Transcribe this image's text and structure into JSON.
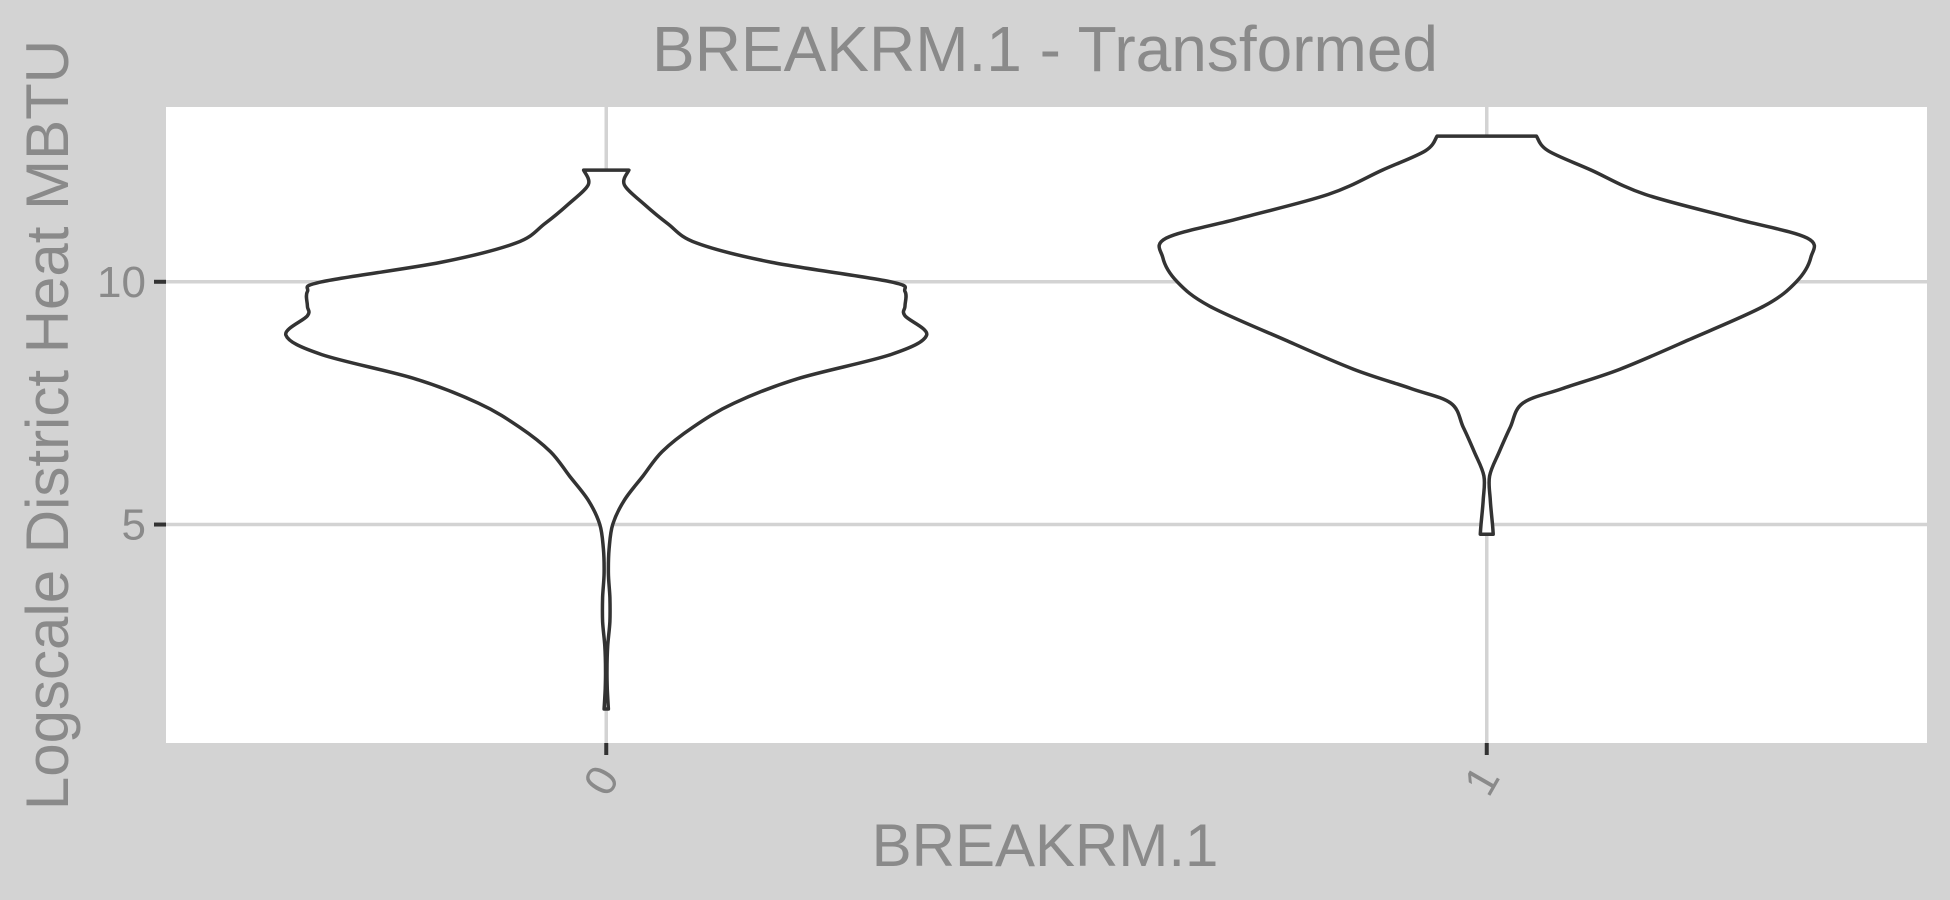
{
  "chart_data": {
    "type": "violin",
    "title": "BREAKRM.1 - Transformed",
    "xlabel": "BREAKRM.1",
    "ylabel": "Logscale District Heat MBTU",
    "categories": [
      "0",
      "1"
    ],
    "y_ticks": [
      5,
      10
    ],
    "y_tick_labels": [
      "5",
      "10"
    ],
    "ylim": [
      0.5,
      13.6
    ],
    "grid": true,
    "colors": {
      "panel_background": "#d3d3d3",
      "plot_background": "#ffffff",
      "grid": "#d3d3d3",
      "outline": "#333333",
      "text": "#8a8a8a"
    },
    "series": [
      {
        "category": "0",
        "min": 1.2,
        "max": 12.3,
        "density": [
          [
            1.2,
            0.006
          ],
          [
            1.6,
            0.003
          ],
          [
            2.0,
            0.002
          ],
          [
            2.5,
            0.004
          ],
          [
            3.0,
            0.01
          ],
          [
            3.5,
            0.01
          ],
          [
            4.0,
            0.006
          ],
          [
            4.5,
            0.008
          ],
          [
            5.0,
            0.018
          ],
          [
            5.5,
            0.05
          ],
          [
            6.0,
            0.102
          ],
          [
            6.5,
            0.155
          ],
          [
            7.0,
            0.24
          ],
          [
            7.5,
            0.355
          ],
          [
            8.0,
            0.53
          ],
          [
            8.5,
            0.79
          ],
          [
            8.9,
            0.89
          ],
          [
            9.3,
            0.83
          ],
          [
            9.5,
            0.83
          ],
          [
            9.8,
            0.83
          ],
          [
            10.0,
            0.79
          ],
          [
            10.4,
            0.46
          ],
          [
            10.8,
            0.25
          ],
          [
            11.2,
            0.17
          ],
          [
            11.6,
            0.105
          ],
          [
            12.0,
            0.05
          ],
          [
            12.3,
            0.063
          ]
        ]
      },
      {
        "category": "1",
        "min": 4.8,
        "max": 13.0,
        "density": [
          [
            4.8,
            0.018
          ],
          [
            5.0,
            0.016
          ],
          [
            5.5,
            0.01
          ],
          [
            6.0,
            0.008
          ],
          [
            6.5,
            0.035
          ],
          [
            7.0,
            0.065
          ],
          [
            7.5,
            0.1
          ],
          [
            7.8,
            0.21
          ],
          [
            8.2,
            0.37
          ],
          [
            8.8,
            0.56
          ],
          [
            9.5,
            0.77
          ],
          [
            10.0,
            0.86
          ],
          [
            10.5,
            0.9
          ],
          [
            10.9,
            0.89
          ],
          [
            11.3,
            0.69
          ],
          [
            11.8,
            0.44
          ],
          [
            12.3,
            0.29
          ],
          [
            12.7,
            0.17
          ],
          [
            13.0,
            0.138
          ]
        ]
      }
    ]
  }
}
